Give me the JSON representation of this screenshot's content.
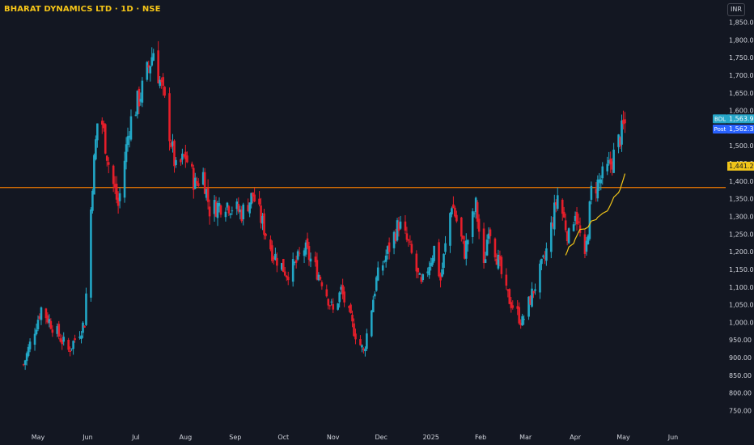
{
  "title": "BHARAT DYNAMICS LTD · 1D · NSE",
  "currency": "INR",
  "colors": {
    "background": "#131722",
    "up": "#26a69a",
    "up_candle": "#22a7c6",
    "down": "#e51e2a",
    "hline": "#f57c00",
    "ma": "#f0c419",
    "axis_text": "#d1d4dc",
    "title": "#f5c518"
  },
  "chart_data": {
    "type": "candlestick",
    "symbol": "BDL",
    "ylim": [
      750,
      1900
    ],
    "y_ticks": [
      "750.00",
      "800.00",
      "850.00",
      "900.00",
      "950.00",
      "1,000.00",
      "1,050.00",
      "1,100.00",
      "1,150.00",
      "1,200.00",
      "1,250.00",
      "1,300.00",
      "1,350.00",
      "1,400.00",
      "1,450.00",
      "1,500.00",
      "1,550.00",
      "1,600.00",
      "1,650.00",
      "1,700.00",
      "1,750.00",
      "1,800.00",
      "1,850.00"
    ],
    "x_ticks": [
      "May",
      "Jun",
      "Jul",
      "Aug",
      "Sep",
      "Oct",
      "Nov",
      "Dec",
      "2025",
      "Feb",
      "Mar",
      "Apr",
      "May",
      "Jun"
    ],
    "horizontal_line": 1382,
    "price_labels": [
      {
        "tag": "BDL",
        "value": "1,563.90",
        "kind": "last"
      },
      {
        "tag": "Post",
        "value": "1,562.30",
        "kind": "post"
      },
      {
        "tag": "",
        "value": "1,441.25",
        "kind": "ma"
      }
    ],
    "anchors": [
      [
        880,
        "2024-04-22"
      ],
      [
        1040,
        "2024-05-03"
      ],
      [
        920,
        "2024-05-20"
      ],
      [
        1000,
        "2024-05-30"
      ],
      [
        1400,
        "2024-06-04"
      ],
      [
        1620,
        "2024-06-08"
      ],
      [
        1450,
        "2024-06-14"
      ],
      [
        1330,
        "2024-06-20"
      ],
      [
        1560,
        "2024-06-27"
      ],
      [
        1660,
        "2024-07-05"
      ],
      [
        1770,
        "2024-07-12"
      ],
      [
        1620,
        "2024-07-19"
      ],
      [
        1430,
        "2024-07-26"
      ],
      [
        1470,
        "2024-08-01"
      ],
      [
        1390,
        "2024-08-07"
      ],
      [
        1420,
        "2024-08-12"
      ],
      [
        1320,
        "2024-08-16"
      ],
      [
        1340,
        "2024-08-26"
      ],
      [
        1310,
        "2024-09-05"
      ],
      [
        1360,
        "2024-09-12"
      ],
      [
        1200,
        "2024-09-24"
      ],
      [
        1140,
        "2024-10-03"
      ],
      [
        1160,
        "2024-10-08"
      ],
      [
        1210,
        "2024-10-14"
      ],
      [
        1120,
        "2024-10-25"
      ],
      [
        1030,
        "2024-11-01"
      ],
      [
        1090,
        "2024-11-06"
      ],
      [
        990,
        "2024-11-13"
      ],
      [
        915,
        "2024-11-20"
      ],
      [
        1120,
        "2024-11-28"
      ],
      [
        1200,
        "2024-12-05"
      ],
      [
        1280,
        "2024-12-12"
      ],
      [
        1220,
        "2024-12-18"
      ],
      [
        1100,
        "2024-12-26"
      ],
      [
        1210,
        "2025-01-03"
      ],
      [
        1120,
        "2025-01-07"
      ],
      [
        1340,
        "2025-01-14"
      ],
      [
        1200,
        "2025-01-22"
      ],
      [
        1330,
        "2025-01-29"
      ],
      [
        1150,
        "2025-02-03"
      ],
      [
        1280,
        "2025-02-06"
      ],
      [
        1080,
        "2025-02-17"
      ],
      [
        1000,
        "2025-02-27"
      ],
      [
        1080,
        "2025-03-05"
      ],
      [
        1180,
        "2025-03-13"
      ],
      [
        1360,
        "2025-03-21"
      ],
      [
        1240,
        "2025-03-28"
      ],
      [
        1320,
        "2025-04-01"
      ],
      [
        1170,
        "2025-04-07"
      ],
      [
        1370,
        "2025-04-11"
      ],
      [
        1430,
        "2025-04-21"
      ],
      [
        1460,
        "2025-04-24"
      ],
      [
        1564,
        "2025-05-02"
      ]
    ]
  }
}
